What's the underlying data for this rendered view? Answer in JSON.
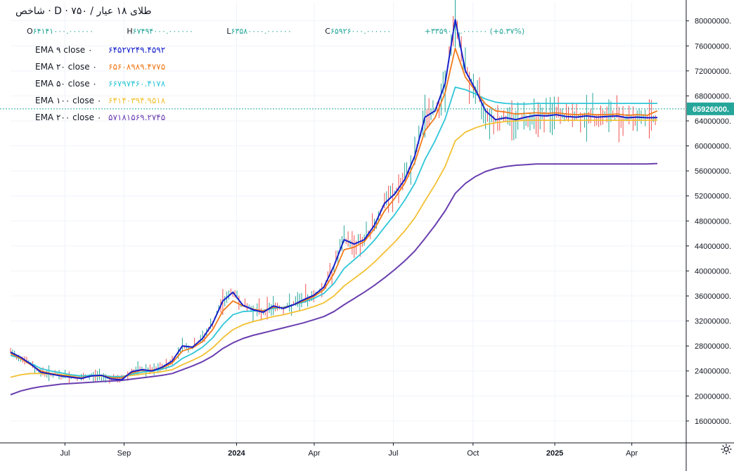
{
  "header": {
    "title": "شاخص · D · طلای ۱۸ عیار / ۷۵۰",
    "ohlc": {
      "open_label": "O",
      "open": "۶۴۱۴۱۰۰۰.۰۰۰۰۰۰",
      "high_label": "H",
      "high": "۶۷۴۹۴۰۰۰.۰۰۰۰۰۰",
      "low_label": "L",
      "low": "۶۳۵۸۰۰۰۰.۰۰۰۰۰۰",
      "close_label": "C",
      "close": "۶۵۹۲۶۰۰۰.۰۰۰۰۰۰",
      "change": "+۳۳۵۹۰۰۰.۰۰۰۰۰۰ (+۵.۳۷%)"
    }
  },
  "indicators": [
    {
      "name": "EMA ۹ close ۰",
      "value": "۶۴۵۲۷۲۴۹.۴۵۹۲",
      "color": "#1620c9"
    },
    {
      "name": "EMA ۲۰ close ۰",
      "value": "۶۵۶۰۸۹۸۹.۴۷۷۵",
      "color": "#f07a1a"
    },
    {
      "name": "EMA ۵۰ close ۰",
      "value": "۶۶۷۹۷۴۶۰.۴۱۷۸",
      "color": "#2fc6d8"
    },
    {
      "name": "EMA ۱۰۰ close ۰",
      "value": "۶۴۱۴۰۳۹۴.۹۵۱۸",
      "color": "#f3c032"
    },
    {
      "name": "EMA ۲۰۰ close ۰",
      "value": "۵۷۱۸۱۵۶۹.۲۷۴۵",
      "color": "#6a3fb0"
    }
  ],
  "chart_data": {
    "type": "line",
    "title": "شاخص · D · طلای ۱۸ عیار / ۷۵۰",
    "xlabel": "",
    "ylabel": "",
    "x_ticks": [
      "Jul",
      "Sep",
      "2024",
      "Apr",
      "Jul",
      "Oct",
      "2025",
      "Apr"
    ],
    "y_ticks": [
      "16000000.",
      "20000000.",
      "24000000.",
      "28000000.",
      "32000000.",
      "36000000.",
      "40000000.",
      "44000000.",
      "48000000.",
      "52000000.",
      "56000000.",
      "60000000.",
      "64000000.",
      "68000000.",
      "72000000.",
      "76000000.",
      "80000000."
    ],
    "ylim": [
      12500000,
      83000000
    ],
    "last_price_label": "65926000.",
    "last_price": 65926000,
    "x": [
      0,
      0.03,
      0.06,
      0.09,
      0.12,
      0.15,
      0.18,
      0.21,
      0.24,
      0.27,
      0.3,
      0.33,
      0.36,
      0.39,
      0.42,
      0.45,
      0.48,
      0.51,
      0.54,
      0.57,
      0.6,
      0.63,
      0.66,
      0.69,
      0.72,
      0.75,
      0.78,
      0.81,
      0.84,
      0.87,
      0.9,
      0.93,
      0.96,
      0.99,
      1.02,
      1.05,
      1.08,
      1.11,
      1.14,
      1.17,
      1.2,
      1.23,
      1.26,
      1.29,
      1.32,
      1.35,
      1.38,
      1.41,
      1.44,
      1.47,
      1.5,
      1.53,
      1.56,
      1.59,
      1.62,
      1.65,
      1.68,
      1.71,
      1.74,
      1.77,
      1.8,
      1.83,
      1.86,
      1.89,
      1.92
    ],
    "series": [
      {
        "name": "EMA 9",
        "color": "#1620c9",
        "values": [
          27000000,
          26200000,
          25100000,
          23800000,
          23500000,
          23200000,
          23000000,
          22800000,
          23200000,
          23300000,
          22700000,
          22600000,
          23900000,
          24200000,
          24000000,
          24600000,
          25600000,
          28000000,
          27800000,
          29200000,
          31600000,
          35200000,
          36600000,
          34500000,
          33800000,
          33400000,
          34400000,
          34000000,
          34600000,
          35400000,
          36100000,
          37400000,
          40800000,
          45000000,
          44300000,
          45000000,
          47300000,
          50800000,
          52300000,
          54600000,
          58400000,
          64600000,
          65600000,
          70000000,
          80200000,
          72000000,
          69000000,
          65600000,
          64200000,
          64500000,
          64200000,
          64600000,
          64900000,
          64800000,
          65000000,
          64700000,
          64600000,
          64800000,
          64600000,
          64700000,
          64800000,
          64500000,
          64600000,
          64500000,
          64527249
        ]
      },
      {
        "name": "EMA 20",
        "color": "#f07a1a",
        "values": [
          26800000,
          26000000,
          25000000,
          24000000,
          23600000,
          23300000,
          23100000,
          22900000,
          23200000,
          23300000,
          22900000,
          22900000,
          23700000,
          24100000,
          24100000,
          24500000,
          25300000,
          27200000,
          27700000,
          28700000,
          30600000,
          33600000,
          35200000,
          34400000,
          33900000,
          33600000,
          34200000,
          34100000,
          34600000,
          35200000,
          35900000,
          37000000,
          39600000,
          43400000,
          43800000,
          44700000,
          46700000,
          49600000,
          51600000,
          54000000,
          57400000,
          62400000,
          64500000,
          68500000,
          75600000,
          71000000,
          68800000,
          66700000,
          65600000,
          65400000,
          65100000,
          65200000,
          65300000,
          65200000,
          65300000,
          65100000,
          65000000,
          65100000,
          65000000,
          65000000,
          65100000,
          64900000,
          65000000,
          64900000,
          65608989
        ]
      },
      {
        "name": "EMA 50",
        "color": "#2fc6d8",
        "values": [
          26500000,
          26000000,
          25200000,
          24400000,
          24000000,
          23700000,
          23400000,
          23200000,
          23300000,
          23300000,
          23100000,
          23100000,
          23500000,
          23800000,
          24000000,
          24300000,
          24800000,
          26000000,
          26800000,
          27800000,
          29300000,
          31400000,
          33000000,
          33500000,
          33600000,
          33700000,
          34000000,
          34200000,
          34600000,
          35000000,
          35600000,
          36400000,
          38000000,
          40400000,
          41800000,
          43200000,
          44900000,
          47000000,
          49000000,
          51300000,
          54000000,
          57800000,
          60800000,
          64300000,
          69400000,
          69000000,
          68300000,
          67500000,
          67000000,
          66800000,
          66700000,
          66700000,
          66800000,
          66800000,
          66800000,
          66800000,
          66800000,
          66800000,
          66800000,
          66800000,
          66800000,
          66800000,
          66800000,
          66800000,
          66797460
        ]
      },
      {
        "name": "EMA 100",
        "color": "#f3c032",
        "values": [
          23000000,
          23400000,
          23600000,
          23600000,
          23500000,
          23400000,
          23300000,
          23200000,
          23200000,
          23200000,
          23100000,
          23100000,
          23300000,
          23500000,
          23700000,
          23900000,
          24200000,
          25000000,
          25700000,
          26500000,
          27700000,
          29300000,
          30600000,
          31400000,
          31900000,
          32300000,
          32700000,
          33000000,
          33400000,
          33800000,
          34300000,
          34900000,
          36000000,
          37600000,
          38800000,
          40000000,
          41400000,
          43000000,
          44600000,
          46400000,
          48500000,
          51200000,
          53800000,
          56700000,
          60800000,
          62200000,
          62900000,
          63400000,
          63700000,
          63900000,
          64000000,
          64100000,
          64100000,
          64100000,
          64100000,
          64100000,
          64100000,
          64100000,
          64100000,
          64100000,
          64100000,
          64100000,
          64100000,
          64100000,
          64140394
        ]
      },
      {
        "name": "EMA 200",
        "color": "#6a3fb0",
        "values": [
          20200000,
          20800000,
          21200000,
          21500000,
          21700000,
          21900000,
          22000000,
          22100000,
          22200000,
          22300000,
          22400000,
          22500000,
          22700000,
          22900000,
          23100000,
          23300000,
          23600000,
          24200000,
          24800000,
          25500000,
          26400000,
          27600000,
          28500000,
          29200000,
          29700000,
          30100000,
          30500000,
          30900000,
          31300000,
          31700000,
          32200000,
          32700000,
          33500000,
          34600000,
          35600000,
          36600000,
          37700000,
          38900000,
          40200000,
          41600000,
          43200000,
          45200000,
          47300000,
          49600000,
          52400000,
          54000000,
          55100000,
          55900000,
          56400000,
          56700000,
          56900000,
          57000000,
          57100000,
          57100000,
          57100000,
          57100000,
          57100000,
          57100000,
          57100000,
          57100000,
          57100000,
          57100000,
          57100000,
          57100000,
          57181569
        ]
      }
    ]
  }
}
